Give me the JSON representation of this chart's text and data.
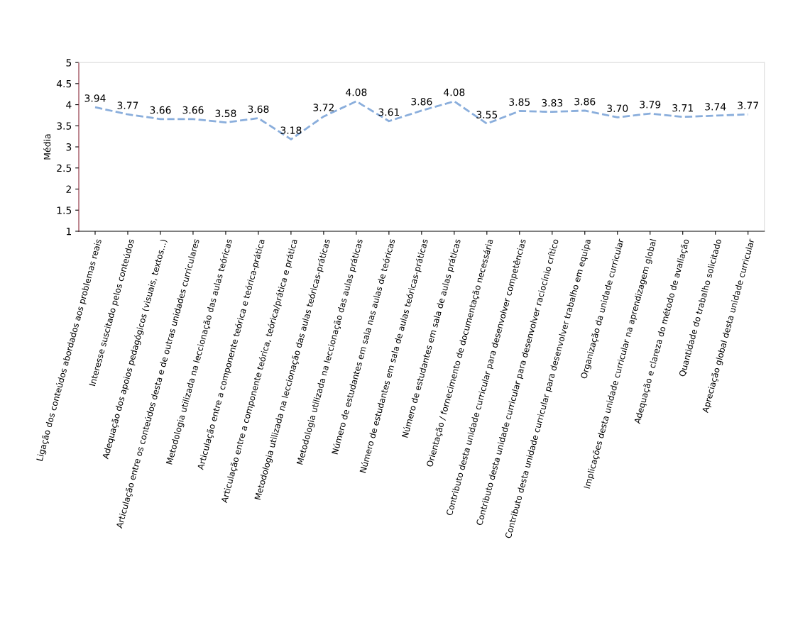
{
  "chart_data": {
    "type": "line",
    "ylabel": "Média",
    "categories": [
      "Ligação dos conteúdos abordados aos problemas reais",
      "Interesse suscitado pelos conteúdos",
      "Adequação dos apoios pedagógicos (visuais, textos...)",
      "Articulação entre os conteúdos desta e de outras unidades curriculares",
      "Metodologia utilizada na leccionação das aulas teóricas",
      "Articulação entre a componente teórica e teórica-prática",
      "Articulação entre a componente teórica, teórica/prática e prática",
      "Metodologia utilizada na leccionação das aulas teóricas-práticas",
      "Metodologia utilizada na leccionação das aulas práticas",
      "Número de estudantes em sala nas aulas de teóricas",
      "Número de estudantes em sala de aulas teóricas-práticas",
      "Número de estudantes em sala de aulas práticas",
      "Orientação / fornecimento de documentação necessária",
      "Contributo desta unidade curricular para desenvolver competências",
      "Contributo desta unidade curricular para desenvolver raciocínio crítico",
      "Contributo desta unidade curricular para desenvolver trabalho em equipa",
      "Organização da unidade curricular",
      "Implicações desta unidade curricular na aprendizagem global",
      "Adequação e clareza do método de avaliação",
      "Quantidade do trabalho solicitado",
      "Apreciação global desta unidade curricular"
    ],
    "values": [
      3.94,
      3.77,
      3.66,
      3.66,
      3.58,
      3.68,
      3.18,
      3.72,
      4.08,
      3.61,
      3.86,
      4.08,
      3.55,
      3.85,
      3.83,
      3.86,
      3.7,
      3.79,
      3.71,
      3.74,
      3.77
    ],
    "value_labels": [
      "3.94",
      "3.77",
      "3.66",
      "3.66",
      "3.58",
      "3.68",
      "3.18",
      "3.72",
      "4.08",
      "3.61",
      "3.86",
      "4.08",
      "3.55",
      "3.85",
      "3.83",
      "3.86",
      "3.70",
      "3.79",
      "3.71",
      "3.74",
      "3.77"
    ],
    "color": "#8aaedc",
    "line_style": "dashed",
    "marker": "none",
    "ylim": [
      1,
      5
    ],
    "yticks": [
      1,
      1.5,
      2,
      2.5,
      3,
      3.5,
      4,
      4.5,
      5
    ],
    "grid": false,
    "legend": false
  }
}
